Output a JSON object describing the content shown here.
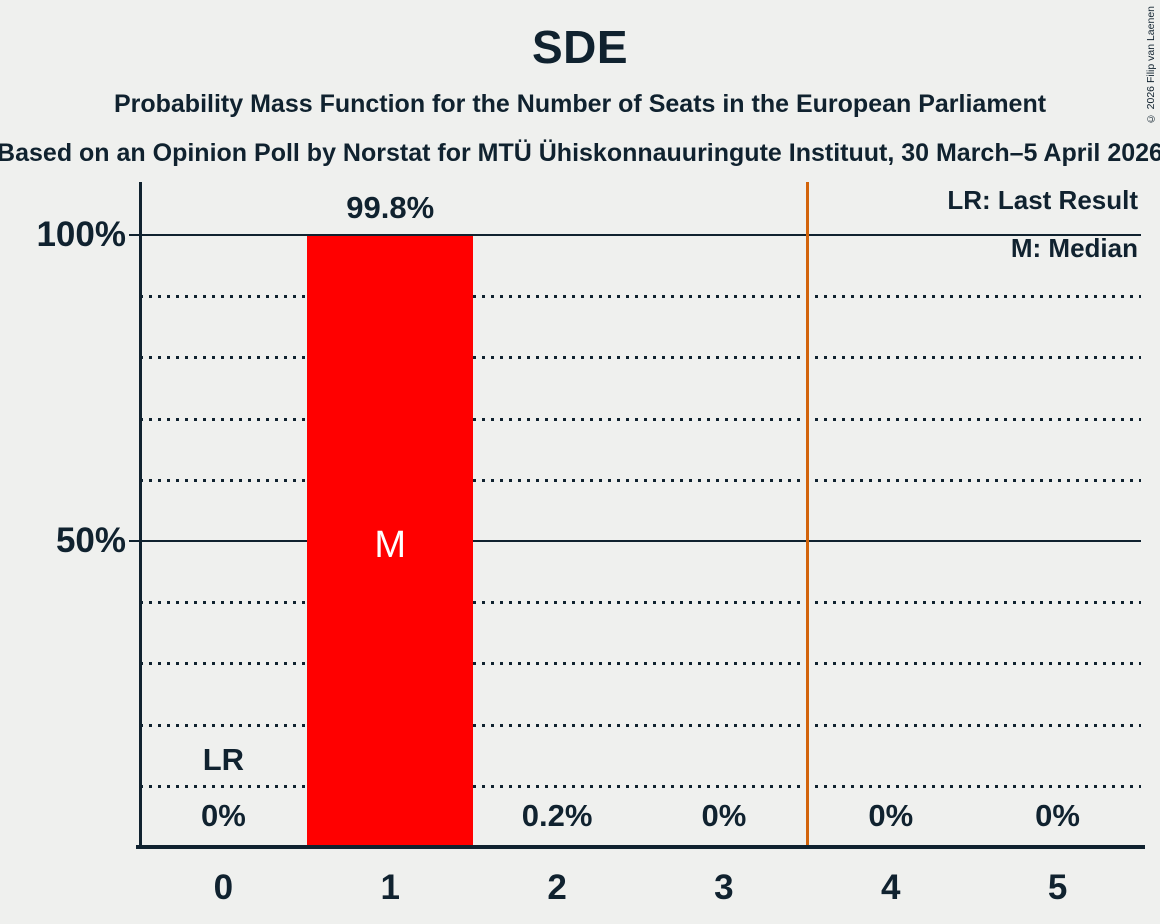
{
  "page": {
    "background_color": "#eff0ee",
    "ink_color": "#10222f"
  },
  "header": {
    "title": "SDE",
    "subtitle": "Probability Mass Function for the Number of Seats in the European Parliament",
    "source_line": "Based on an Opinion Poll by Norstat for MTÜ Ühiskonnauuringute Instituut, 30 March–5 April 2026"
  },
  "copyright": "© 2026 Filip van Laenen",
  "legend": {
    "lr_label": "LR: Last Result",
    "m_label": "M: Median"
  },
  "chart_data": {
    "type": "bar",
    "title": "SDE",
    "categories": [
      "0",
      "1",
      "2",
      "3",
      "4",
      "5"
    ],
    "values": [
      0,
      99.8,
      0.2,
      0,
      0,
      0
    ],
    "value_labels": [
      "0%",
      "99.8%",
      "0.2%",
      "0%",
      "0%",
      "0%"
    ],
    "y_ticks": [
      {
        "value": 100,
        "label": "100%"
      },
      {
        "value": 50,
        "label": "50%"
      }
    ],
    "ylim": [
      0,
      108.5
    ],
    "solid_gridlines_pct": [
      100,
      50
    ],
    "dotted_gridlines_pct": [
      90,
      80,
      70,
      60,
      40,
      30,
      20,
      10
    ],
    "grid": "horizontal dotted",
    "legend_position": "top-right",
    "bar_color": "#ff0000",
    "bar_label_color": "#ffffff",
    "median_category": "1",
    "median_marker": "M",
    "last_result_category": "0",
    "last_result_marker": "LR",
    "vertical_line_x": 3.5,
    "vertical_line_color": "#d2630a"
  }
}
